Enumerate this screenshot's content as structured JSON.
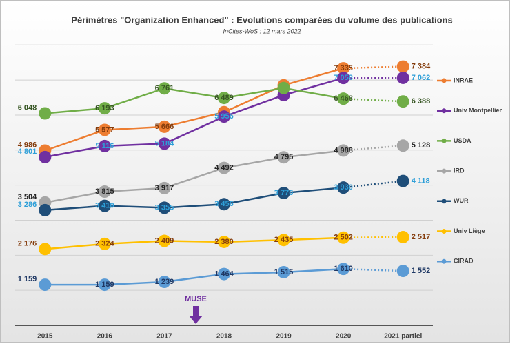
{
  "chart_data": {
    "type": "line",
    "title": "Périmètres \"Organization Enhanced\" : Evolutions comparées du volume des publications",
    "subtitle": "InCites-WoS : 12 mars 2022",
    "annotation": "MUSE",
    "categories": [
      "2015",
      "2016",
      "2017",
      "2018",
      "2019",
      "2020",
      "2021 partiel"
    ],
    "ylim": [
      0,
      8300
    ],
    "yticks": [
      0,
      1000,
      2000,
      3000,
      4000,
      5000,
      6000,
      7000,
      8000
    ],
    "grid": true,
    "legend": "right",
    "last_segment_style": "dotted",
    "series": [
      {
        "name": "INRAE",
        "color": "#ed7d31",
        "label_color": "#843c0c",
        "values": [
          4986,
          5577,
          5666,
          6083,
          6850,
          7335,
          7384
        ],
        "value_labels": [
          "4 986",
          "5 577",
          "5 666",
          null,
          null,
          "7 335",
          "7 384"
        ]
      },
      {
        "name": "Univ Montpellier",
        "color": "#7030a0",
        "label_color": "#2e9fd8",
        "values": [
          4801,
          5116,
          5184,
          5956,
          6570,
          7058,
          7062
        ],
        "value_labels": [
          "4 801",
          "5 116",
          "5 184",
          "5 956",
          null,
          "7 058",
          "7 062"
        ]
      },
      {
        "name": "USDA",
        "color": "#70ad47",
        "label_color": "#375623",
        "values": [
          6048,
          6193,
          6761,
          6489,
          6770,
          6468,
          6388
        ],
        "value_labels": [
          "6 048",
          "6 193",
          "6 761",
          "6 489",
          null,
          "6 468",
          "6 388"
        ]
      },
      {
        "name": "IRD",
        "color": "#a6a6a6",
        "label_color": "#262626",
        "values": [
          3504,
          3815,
          3917,
          4492,
          4795,
          4988,
          5128
        ],
        "value_labels": [
          "3 504",
          "3 815",
          "3 917",
          "4 492",
          "4 795",
          "4 988",
          "5 128"
        ]
      },
      {
        "name": "WUR",
        "color": "#1f4e79",
        "label_color": "#2e9fd8",
        "values": [
          3286,
          3410,
          3355,
          3456,
          3776,
          3930,
          4118
        ],
        "value_labels": [
          "3 286",
          "3 410",
          "3 355",
          "3 456",
          "3 776",
          "3 930",
          "4 118"
        ]
      },
      {
        "name": "Univ Liège",
        "color": "#ffc000",
        "label_color": "#843c0c",
        "values": [
          2176,
          2324,
          2409,
          2380,
          2435,
          2502,
          2517
        ],
        "value_labels": [
          "2 176",
          "2 324",
          "2 409",
          "2 380",
          "2 435",
          "2 502",
          "2 517"
        ]
      },
      {
        "name": "CIRAD",
        "color": "#5b9bd5",
        "label_color": "#1f3864",
        "values": [
          1159,
          1159,
          1239,
          1464,
          1515,
          1610,
          1552
        ],
        "value_labels": [
          "1 159",
          "1 159",
          "1 239",
          "1 464",
          "1 515",
          "1 610",
          "1 552"
        ]
      }
    ]
  }
}
